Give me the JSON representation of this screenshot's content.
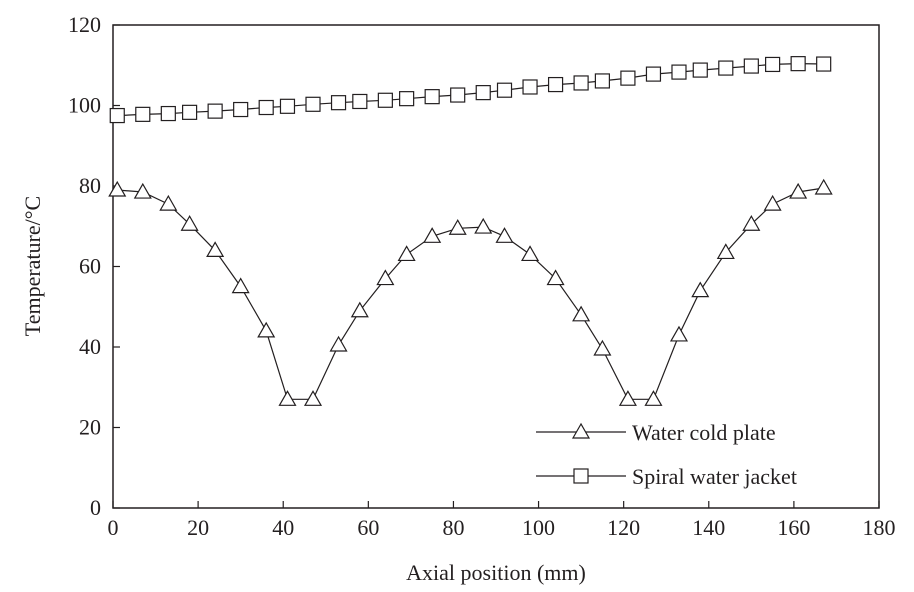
{
  "chart_data": {
    "type": "line",
    "xlabel": "Axial position (mm)",
    "ylabel": "Temperature/°C",
    "xlim": [
      0,
      180
    ],
    "ylim": [
      0,
      120
    ],
    "xticks": [
      0,
      20,
      40,
      60,
      80,
      100,
      120,
      140,
      160,
      180
    ],
    "yticks": [
      0,
      20,
      40,
      60,
      80,
      100,
      120
    ],
    "grid": false,
    "legend_position": "bottom-right",
    "series": [
      {
        "name": "Water cold plate",
        "marker": "triangle",
        "color": "#231f20",
        "x": [
          1,
          7,
          13,
          18,
          24,
          30,
          36,
          41,
          47,
          53,
          58,
          64,
          69,
          75,
          81,
          87,
          92,
          98,
          104,
          110,
          115,
          121,
          127,
          133,
          138,
          144,
          150,
          155,
          161,
          167
        ],
        "y": [
          79,
          78.5,
          75.5,
          70.5,
          64,
          55,
          44,
          27,
          27,
          40.5,
          49,
          57,
          63,
          67.5,
          69.5,
          69.8,
          67.5,
          63,
          57,
          48,
          39.5,
          27,
          27,
          43,
          54,
          63.5,
          70.5,
          75.5,
          78.5,
          79.5
        ]
      },
      {
        "name": "Spiral water jacket",
        "marker": "square",
        "color": "#231f20",
        "x": [
          1,
          7,
          13,
          18,
          24,
          30,
          36,
          41,
          47,
          53,
          58,
          64,
          69,
          75,
          81,
          87,
          92,
          98,
          104,
          110,
          115,
          121,
          127,
          133,
          138,
          144,
          150,
          155,
          161,
          167
        ],
        "y": [
          97.5,
          97.8,
          98,
          98.3,
          98.6,
          99,
          99.5,
          99.8,
          100.3,
          100.7,
          101,
          101.3,
          101.7,
          102.2,
          102.6,
          103.2,
          103.8,
          104.6,
          105.2,
          105.6,
          106.1,
          106.8,
          107.8,
          108.3,
          108.8,
          109.3,
          109.8,
          110.2,
          110.4,
          110.3
        ]
      }
    ]
  }
}
